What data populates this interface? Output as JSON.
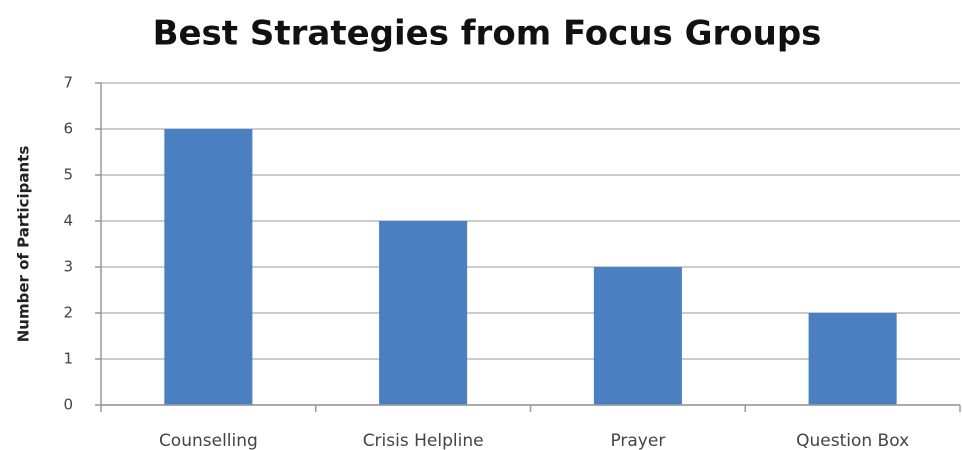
{
  "chart_data": {
    "type": "bar",
    "title": "Best Strategies from Focus Groups",
    "y_label": "Number of Participants",
    "categories": [
      "Counselling",
      "Crisis Helpline",
      "Prayer",
      "Question Box"
    ],
    "values": [
      6,
      4,
      3,
      2
    ],
    "color": "#4a7fc1",
    "ylim": [
      0,
      7
    ],
    "yticks": [
      0,
      1,
      2,
      3,
      4,
      5,
      6,
      7
    ],
    "grid": true
  }
}
